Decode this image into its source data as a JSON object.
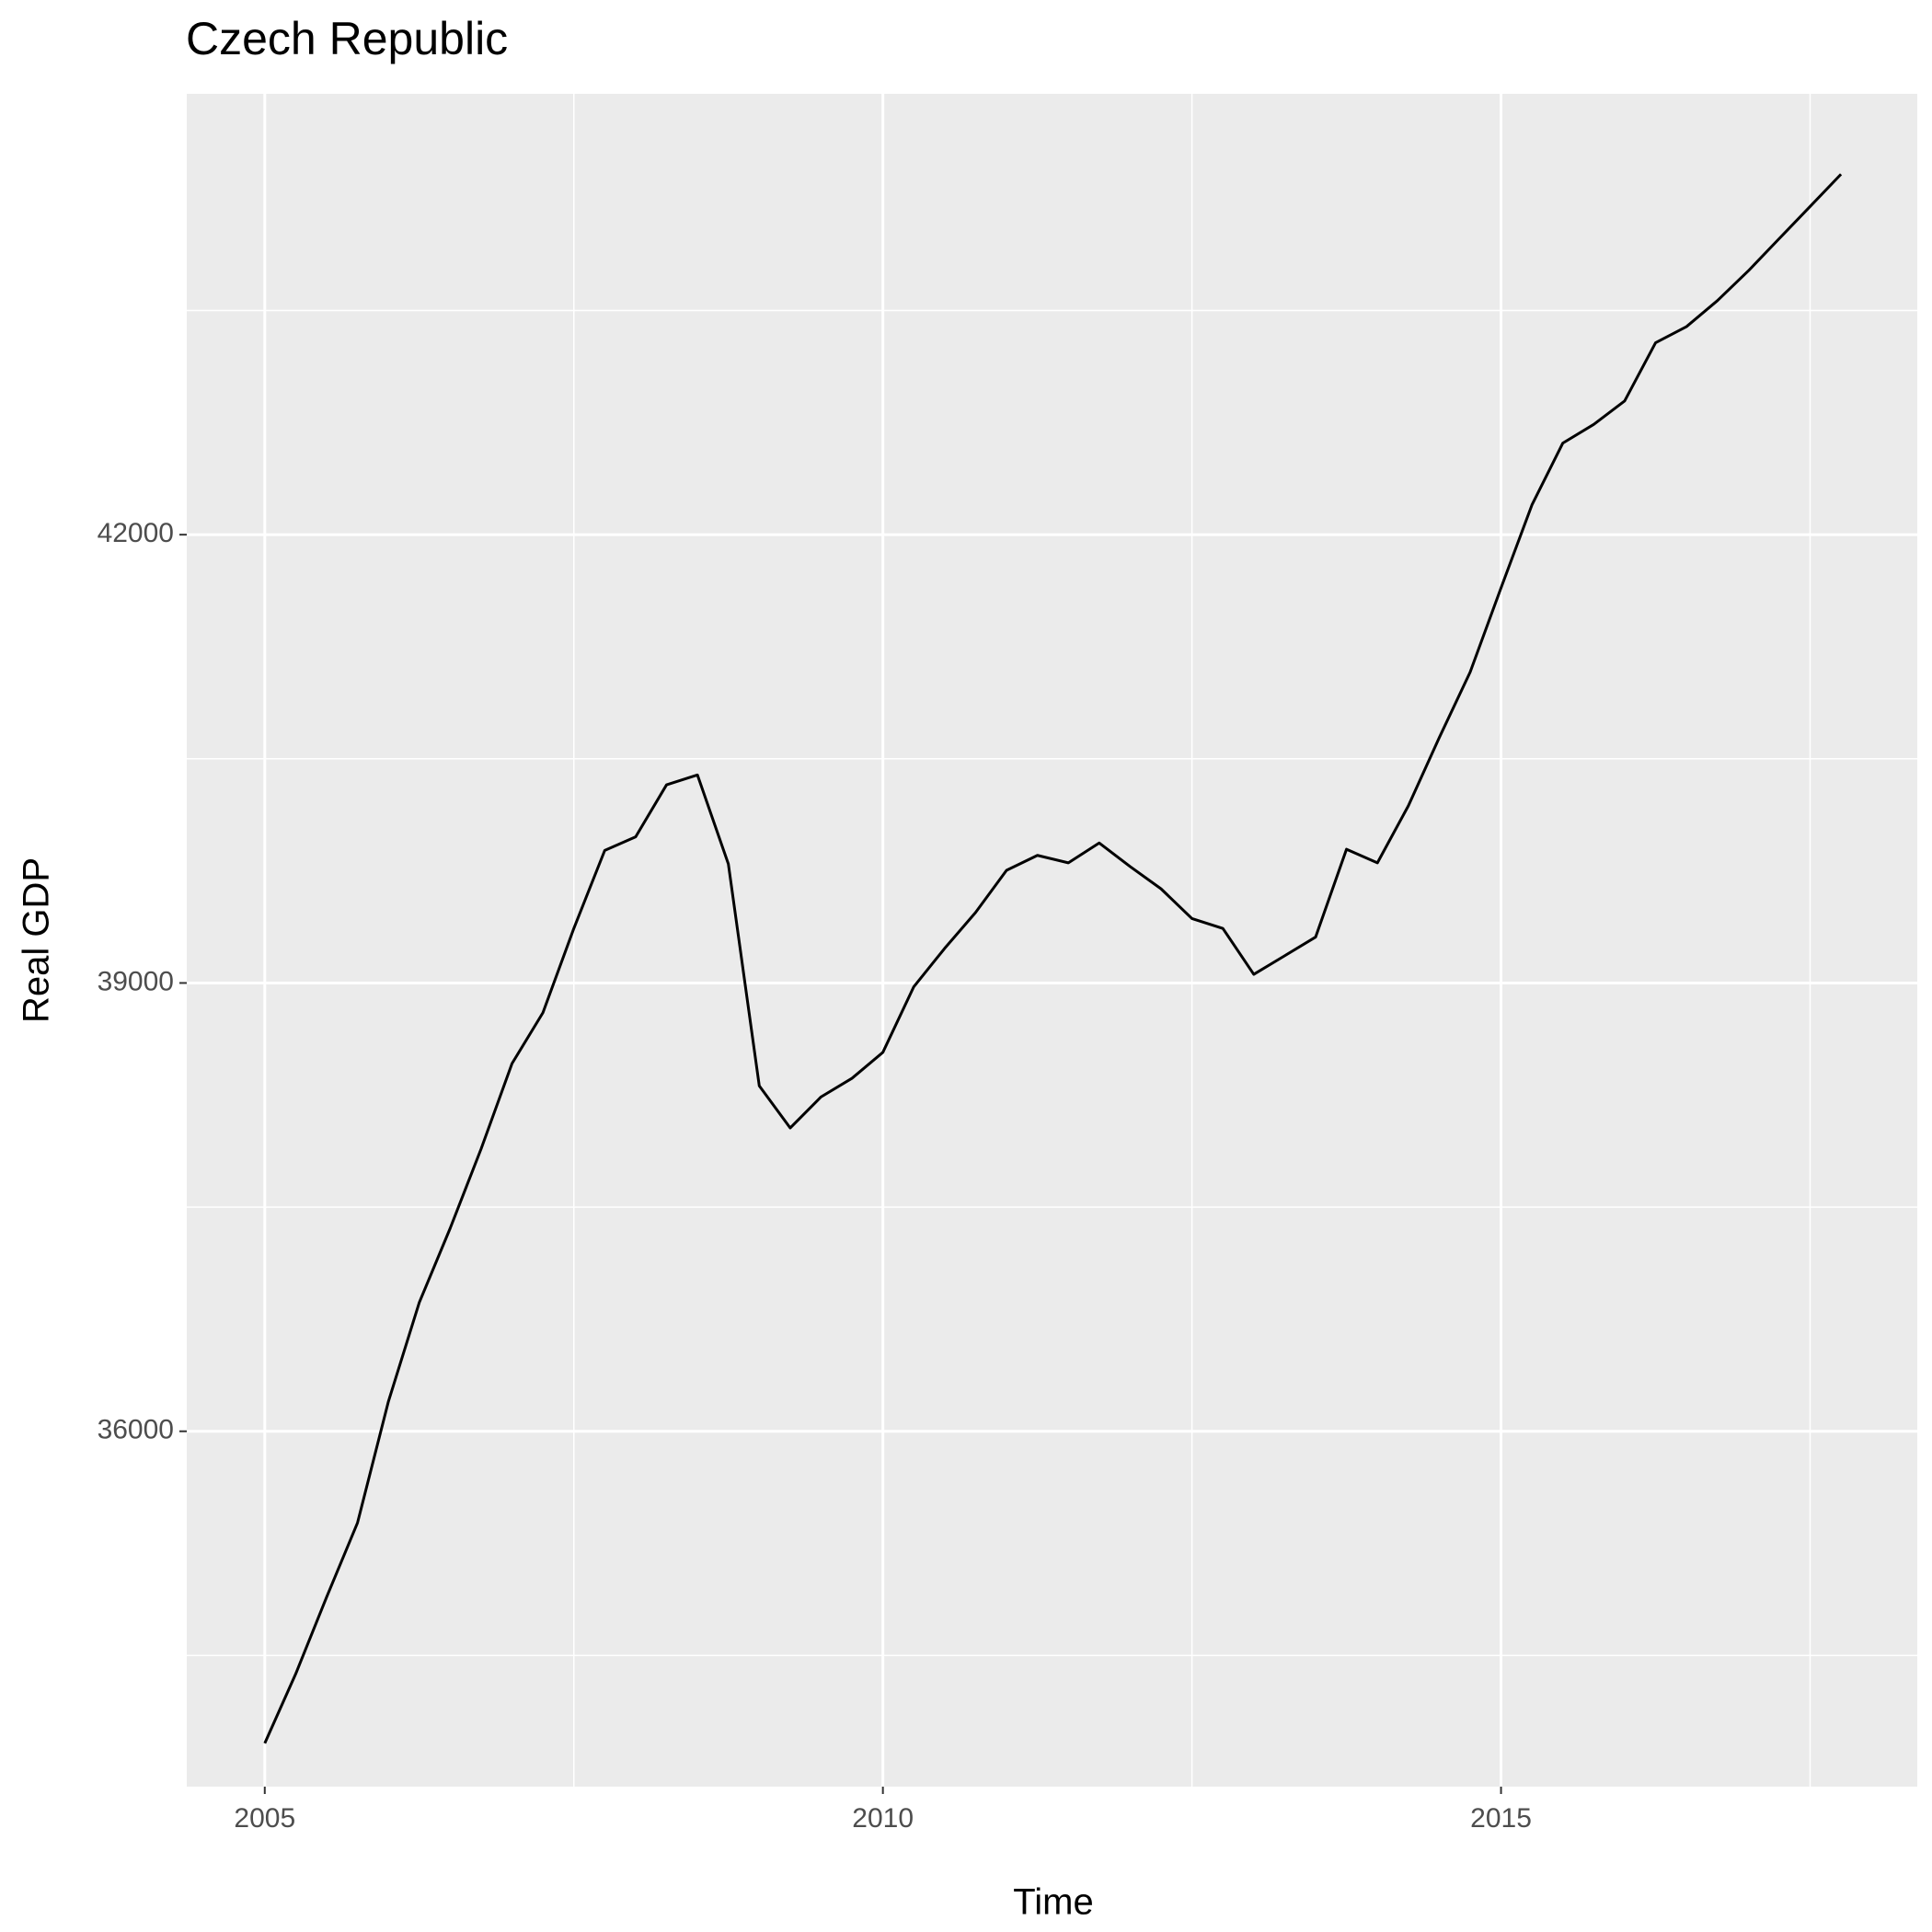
{
  "chart_data": {
    "type": "line",
    "title": "Czech Republic",
    "x_label": "Time",
    "y_label": "Real GDP",
    "x": [
      2005,
      2005.25,
      2005.5,
      2005.75,
      2006,
      2006.25,
      2006.5,
      2006.75,
      2007,
      2007.25,
      2007.5,
      2007.75,
      2008,
      2008.25,
      2008.5,
      2008.75,
      2009,
      2009.25,
      2009.5,
      2009.75,
      2010,
      2010.25,
      2010.5,
      2010.75,
      2011,
      2011.25,
      2011.5,
      2011.75,
      2012,
      2012.25,
      2012.5,
      2012.75,
      2013,
      2013.25,
      2013.5,
      2013.75,
      2014,
      2014.25,
      2014.5,
      2014.75,
      2015,
      2015.25,
      2015.5,
      2015.75,
      2016,
      2016.25,
      2016.5,
      2016.75,
      2017,
      2017.25,
      2017.5,
      2017.75
    ],
    "series": [
      {
        "color": "#000000",
        "values": [
          33912,
          34376,
          34890,
          35387,
          36199,
          36862,
          37359,
          37890,
          38461,
          38801,
          39365,
          39887,
          39978,
          40326,
          40392,
          39796,
          38312,
          38030,
          38238,
          38362,
          38536,
          38975,
          39232,
          39472,
          39754,
          39854,
          39804,
          39937,
          39779,
          39630,
          39431,
          39365,
          39058,
          39182,
          39307,
          39895,
          39804,
          40185,
          40641,
          41080,
          41644,
          42199,
          42613,
          42738,
          42895,
          43284,
          43392,
          43566,
          43765,
          43981,
          44196,
          44412
        ]
      }
    ],
    "xlim": [
      2004.369,
      2018.367
    ],
    "ylim": [
      33622,
      44950
    ],
    "xticks": [
      2005,
      2010,
      2015
    ],
    "yticks": [
      36000,
      39000,
      42000
    ],
    "x_minor_ticks": [
      2007.5,
      2012.5,
      2017.5
    ],
    "y_minor_ticks": [
      34500,
      37500,
      40500,
      43500
    ],
    "grid": true,
    "panel_color": "#ebebeb"
  }
}
